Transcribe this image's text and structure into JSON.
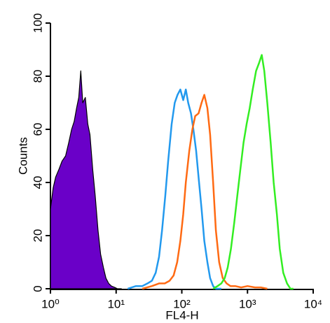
{
  "chart_data": {
    "type": "histogram-overlay",
    "xlabel": "FL4-H",
    "ylabel": "Counts",
    "xscale": "log",
    "xlim": [
      1,
      10000
    ],
    "ylim": [
      0,
      100
    ],
    "xticks": [
      {
        "value": 1,
        "label": "10⁰"
      },
      {
        "value": 10,
        "label": "10¹"
      },
      {
        "value": 100,
        "label": "10²"
      },
      {
        "value": 1000,
        "label": "10³"
      },
      {
        "value": 10000,
        "label": "10⁴"
      }
    ],
    "yticks": [
      0,
      20,
      40,
      60,
      80,
      100
    ],
    "series": [
      {
        "color": "#000000",
        "fill": "#6a00c8",
        "x": [
          1,
          1.1,
          1.2,
          1.35,
          1.5,
          1.7,
          1.9,
          2.1,
          2.3,
          2.5,
          2.7,
          2.9,
          3.1,
          3.4,
          3.7,
          4.0,
          4.4,
          4.8,
          5.3,
          5.8,
          6.4,
          7,
          7.7,
          8.5,
          9.5,
          10.5,
          12
        ],
        "values": [
          30,
          38,
          42,
          45,
          48,
          50,
          55,
          60,
          63,
          68,
          72,
          82,
          70,
          72,
          62,
          58,
          45,
          35,
          22,
          13,
          8,
          4,
          2,
          1,
          0.5,
          0,
          0
        ]
      },
      {
        "color": "#2299ee",
        "x": [
          15,
          20,
          25,
          30,
          35,
          40,
          45,
          50,
          56,
          62,
          70,
          78,
          86,
          95,
          105,
          115,
          125,
          138,
          150,
          165,
          180,
          200,
          220,
          245,
          270,
          300,
          330,
          400
        ],
        "values": [
          0,
          1,
          1,
          2,
          3,
          6,
          12,
          22,
          35,
          48,
          62,
          70,
          73,
          75,
          71,
          75,
          70,
          66,
          60,
          52,
          42,
          30,
          18,
          10,
          4,
          1,
          0,
          0
        ]
      },
      {
        "color": "#ff6a13",
        "x": [
          25,
          35,
          45,
          55,
          65,
          75,
          85,
          95,
          105,
          115,
          130,
          145,
          160,
          180,
          200,
          220,
          245,
          270,
          300,
          330,
          370,
          420,
          480,
          550,
          650,
          800,
          1000,
          1300,
          1600,
          2000
        ],
        "values": [
          0,
          1,
          2,
          2,
          3,
          5,
          10,
          18,
          28,
          40,
          52,
          60,
          65,
          66,
          70,
          73,
          68,
          58,
          40,
          22,
          10,
          4,
          2,
          1,
          1,
          0.5,
          1,
          0.5,
          0.5,
          0
        ]
      },
      {
        "color": "#33ee22",
        "x": [
          300,
          350,
          400,
          450,
          500,
          560,
          630,
          700,
          780,
          870,
          970,
          1080,
          1200,
          1350,
          1500,
          1650,
          1800,
          2000,
          2250,
          2500,
          2800,
          3100,
          3500,
          4000,
          4500,
          5000
        ],
        "values": [
          0,
          1,
          2,
          4,
          8,
          15,
          25,
          35,
          45,
          55,
          62,
          68,
          75,
          82,
          85,
          88,
          82,
          70,
          55,
          40,
          28,
          15,
          6,
          2,
          0,
          0
        ]
      }
    ]
  }
}
